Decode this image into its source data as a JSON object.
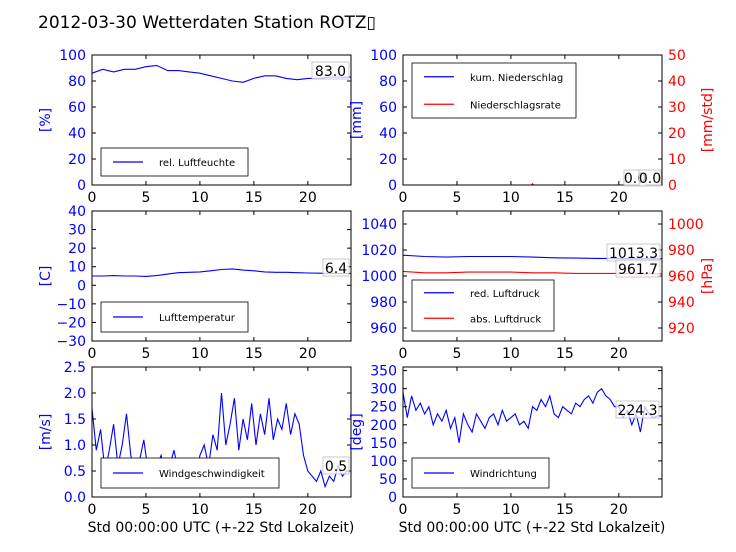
{
  "figure": {
    "title": "2012-03-30 Wetterdaten Station ROTZ▯",
    "xlabel": "Std 00:00:00 UTC (+-22 Std Lokalzeit)"
  },
  "colors": {
    "blue": "#0000ff",
    "red": "#ff0000",
    "lightblue": "#7f7fff",
    "black": "#000000"
  },
  "chart_data": [
    {
      "type": "line",
      "panel": "humidity",
      "ylabel": "[%]",
      "xlim": [
        0,
        24
      ],
      "ylim": [
        0,
        100
      ],
      "xticks": [
        0,
        5,
        10,
        15,
        20
      ],
      "yticks": [
        0,
        20,
        40,
        60,
        80,
        100
      ],
      "legend": {
        "placement": "lower-left"
      },
      "last_value_label": "83.0",
      "series": [
        {
          "name": "rel. Luftfeuchte",
          "color": "#0000ff",
          "x": [
            0,
            1,
            2,
            3,
            4,
            5,
            6,
            7,
            8,
            9,
            10,
            11,
            12,
            13,
            14,
            15,
            16,
            17,
            18,
            19,
            20,
            21,
            22,
            23,
            24
          ],
          "y": [
            86,
            89,
            87,
            89,
            89,
            91,
            92,
            88,
            88,
            87,
            86,
            84,
            82,
            80,
            79,
            82,
            84,
            84,
            82,
            81,
            82,
            82,
            83,
            83,
            83
          ]
        }
      ]
    },
    {
      "type": "line",
      "panel": "precipitation",
      "ylabel": "[mm]",
      "y2label": "[mm/std]",
      "xlim": [
        0,
        24
      ],
      "ylim": [
        0,
        100
      ],
      "y2lim": [
        0,
        50
      ],
      "xticks": [
        0,
        5,
        10,
        15,
        20
      ],
      "yticks": [
        0,
        20,
        40,
        60,
        80,
        100
      ],
      "y2ticks": [
        0,
        10,
        20,
        30,
        40,
        50
      ],
      "legend": {
        "placement": "upper-left"
      },
      "last_value_labels": [
        "0.0",
        "0.0"
      ],
      "series": [
        {
          "name": "kum. Niederschlag",
          "color": "#0000ff",
          "axis": "left",
          "x": [
            0,
            6,
            12,
            18,
            24
          ],
          "y": [
            0,
            0,
            0,
            0,
            0
          ]
        },
        {
          "name": "Niederschlagsrate",
          "color": "#ff0000",
          "axis": "right",
          "x": [
            0,
            6,
            11.9,
            12,
            12.1,
            18,
            24
          ],
          "y": [
            0,
            0,
            0,
            0.5,
            0,
            0,
            0
          ]
        }
      ]
    },
    {
      "type": "line",
      "panel": "temperature",
      "ylabel": "[C]",
      "xlim": [
        0,
        24
      ],
      "ylim": [
        -30,
        40
      ],
      "xticks": [
        0,
        5,
        10,
        15,
        20
      ],
      "yticks": [
        -30,
        -20,
        -10,
        0,
        10,
        20,
        30,
        40
      ],
      "legend": {
        "placement": "lower-left"
      },
      "last_value_label": "6.4",
      "series": [
        {
          "name": "Lufttemperatur",
          "color": "#0000ff",
          "x": [
            0,
            1,
            2,
            3,
            4,
            5,
            6,
            7,
            8,
            9,
            10,
            11,
            12,
            13,
            14,
            15,
            16,
            17,
            18,
            19,
            20,
            21,
            22,
            23,
            24
          ],
          "y": [
            5,
            5,
            5.2,
            5,
            5,
            4.8,
            5.2,
            6,
            6.8,
            7,
            7.2,
            7.8,
            8.5,
            8.8,
            8.2,
            7.8,
            7.2,
            7,
            7,
            6.8,
            6.6,
            6.5,
            6.4,
            6.4,
            6.4
          ]
        }
      ]
    },
    {
      "type": "line",
      "panel": "pressure",
      "ylabel": "",
      "y2label": "[hPa]",
      "xlim": [
        0,
        24
      ],
      "ylim": [
        950,
        1050
      ],
      "y2lim": [
        910,
        1010
      ],
      "xticks": [
        0,
        5,
        10,
        15,
        20
      ],
      "yticks": [
        960,
        980,
        1000,
        1020,
        1040
      ],
      "y2ticks": [
        920,
        940,
        960,
        980,
        1000
      ],
      "legend": {
        "placement": "lower-left"
      },
      "last_value_labels": [
        "1013.3",
        "961.7"
      ],
      "series": [
        {
          "name": "red. Luftdruck",
          "color": "#0000ff",
          "axis": "left",
          "x": [
            0,
            2,
            4,
            6,
            8,
            10,
            12,
            14,
            16,
            18,
            20,
            22,
            24
          ],
          "y": [
            1016,
            1015,
            1014.5,
            1015,
            1015,
            1015,
            1014.5,
            1014,
            1013.8,
            1013.5,
            1013.5,
            1013.3,
            1013.3
          ]
        },
        {
          "name": "abs. Luftdruck",
          "color": "#ff0000",
          "axis": "right",
          "x": [
            0,
            2,
            4,
            6,
            8,
            10,
            12,
            14,
            16,
            18,
            20,
            22,
            24
          ],
          "y": [
            963.5,
            962.5,
            962.5,
            963,
            963,
            963,
            962.5,
            962.5,
            962,
            962,
            962,
            961.7,
            961.7
          ]
        }
      ]
    },
    {
      "type": "line",
      "panel": "wind_speed",
      "ylabel": "[m/s]",
      "xlim": [
        0,
        24
      ],
      "ylim": [
        0,
        2.5
      ],
      "xticks": [
        0,
        5,
        10,
        15,
        20
      ],
      "yticks": [
        0.0,
        0.5,
        1.0,
        1.5,
        2.0,
        2.5
      ],
      "legend": {
        "placement": "lower-left"
      },
      "last_value_label": "0.5",
      "series": [
        {
          "name": "Windgeschwindigkeit",
          "color": "#0000ff",
          "x": [
            0,
            0.4,
            0.8,
            1.2,
            1.6,
            2,
            2.4,
            2.8,
            3.2,
            3.6,
            4,
            4.4,
            4.8,
            5.2,
            5.6,
            6,
            6.4,
            6.8,
            7.2,
            7.6,
            8,
            8.4,
            8.8,
            9.2,
            9.6,
            10,
            10.4,
            10.8,
            11.2,
            11.6,
            12,
            12.4,
            12.8,
            13.2,
            13.6,
            14,
            14.4,
            14.8,
            15.2,
            15.6,
            16,
            16.4,
            16.8,
            17.2,
            17.6,
            18,
            18.4,
            18.8,
            19.2,
            19.6,
            20,
            20.4,
            20.8,
            21.2,
            21.6,
            22,
            22.4,
            22.8,
            23.2,
            23.6,
            24
          ],
          "y": [
            1.7,
            0.9,
            1.3,
            0.5,
            0.9,
            1.4,
            0.6,
            1.0,
            1.6,
            0.8,
            0.4,
            0.7,
            1.1,
            0.5,
            0.3,
            0.6,
            0.8,
            0.4,
            0.6,
            0.9,
            0.5,
            0.4,
            0.7,
            0.5,
            0.4,
            0.8,
            1.0,
            0.6,
            1.2,
            0.9,
            2.0,
            1.0,
            1.4,
            1.9,
            0.9,
            1.5,
            1.1,
            1.8,
            1.0,
            1.6,
            1.2,
            1.9,
            1.1,
            1.5,
            1.3,
            1.8,
            1.2,
            1.6,
            1.4,
            0.8,
            0.5,
            0.4,
            0.3,
            0.5,
            0.2,
            0.4,
            0.3,
            0.6,
            0.4,
            0.5,
            0.5
          ]
        }
      ]
    },
    {
      "type": "line",
      "panel": "wind_direction",
      "ylabel": "[deg]",
      "xlim": [
        0,
        24
      ],
      "ylim": [
        0,
        360
      ],
      "xticks": [
        0,
        5,
        10,
        15,
        20
      ],
      "yticks": [
        0,
        50,
        100,
        150,
        200,
        250,
        300,
        350
      ],
      "legend": {
        "placement": "lower-left"
      },
      "last_value_label": "224.3",
      "series": [
        {
          "name": "Windrichtung",
          "color": "#0000ff",
          "x": [
            0,
            0.4,
            0.8,
            1.2,
            1.6,
            2,
            2.4,
            2.8,
            3.2,
            3.6,
            4,
            4.4,
            4.8,
            5.2,
            5.6,
            6,
            6.4,
            6.8,
            7.2,
            7.6,
            8,
            8.4,
            8.8,
            9.2,
            9.6,
            10,
            10.4,
            10.8,
            11.2,
            11.6,
            12,
            12.4,
            12.8,
            13.2,
            13.6,
            14,
            14.4,
            14.8,
            15.2,
            15.6,
            16,
            16.4,
            16.8,
            17.2,
            17.6,
            18,
            18.4,
            18.8,
            19.2,
            19.6,
            20,
            20.4,
            20.8,
            21.2,
            21.6,
            22,
            22.4,
            22.8,
            23.2,
            23.6,
            24
          ],
          "y": [
            290,
            220,
            280,
            240,
            260,
            230,
            250,
            200,
            230,
            210,
            240,
            190,
            220,
            150,
            230,
            200,
            180,
            230,
            210,
            190,
            220,
            230,
            200,
            240,
            210,
            220,
            230,
            200,
            210,
            190,
            250,
            240,
            270,
            250,
            280,
            230,
            220,
            250,
            240,
            230,
            260,
            250,
            270,
            280,
            260,
            290,
            300,
            280,
            270,
            250,
            250,
            220,
            240,
            200,
            230,
            180,
            250,
            230,
            220,
            225,
            224
          ]
        }
      ]
    }
  ]
}
